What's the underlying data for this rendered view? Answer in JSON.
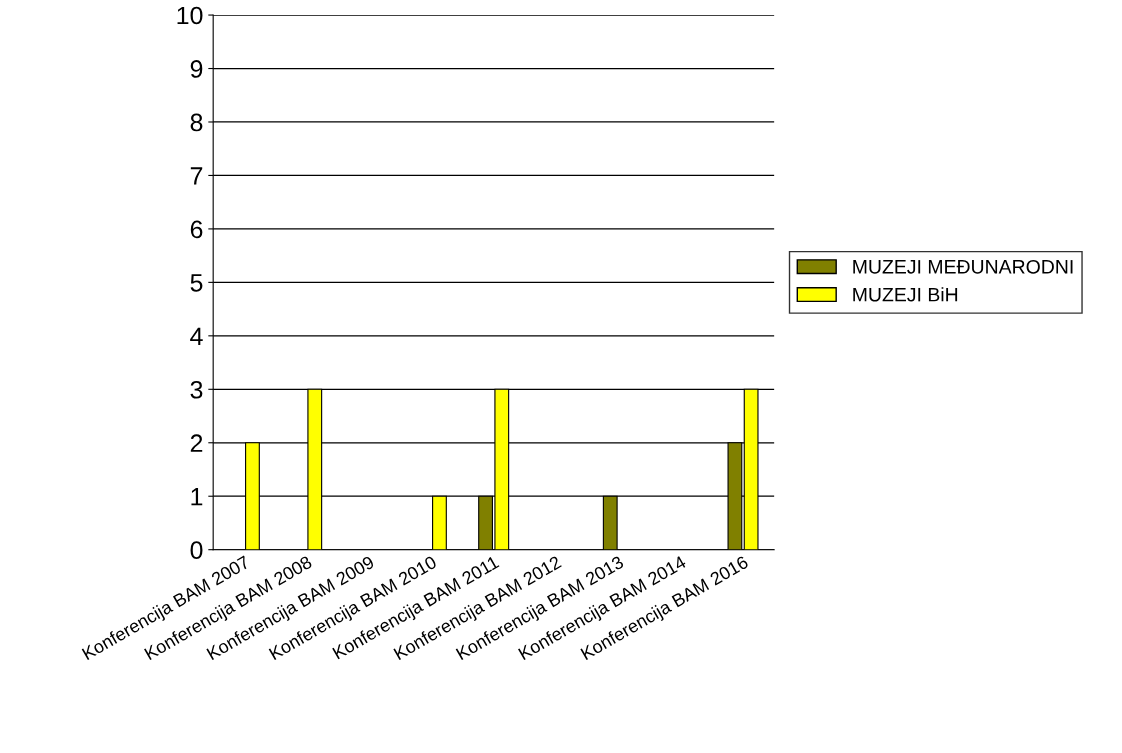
{
  "chart_data": {
    "type": "bar",
    "categories": [
      "Konferencija BAM 2007",
      "Konferencija BAM 2008",
      "Konferencija BAM 2009",
      "Konferencija BAM 2010",
      "Konferencija BAM 2011",
      "Konferencija BAM 2012",
      "Konferencija BAM 2013",
      "Konferencija BAM 2014",
      "Konferencija BAM 2016"
    ],
    "series": [
      {
        "name": "MUZEJI MEĐUNARODNI",
        "color": "#808000",
        "values": [
          0,
          0,
          0,
          0,
          1,
          0,
          1,
          0,
          2
        ]
      },
      {
        "name": "MUZEJI BiH",
        "color": "#ffff00",
        "values": [
          2,
          3,
          0,
          1,
          3,
          0,
          0,
          0,
          3
        ]
      }
    ],
    "ylim": [
      0,
      10
    ],
    "yticks": [
      0,
      1,
      2,
      3,
      4,
      5,
      6,
      7,
      8,
      9,
      10
    ],
    "grid": "y",
    "legend": "right"
  }
}
